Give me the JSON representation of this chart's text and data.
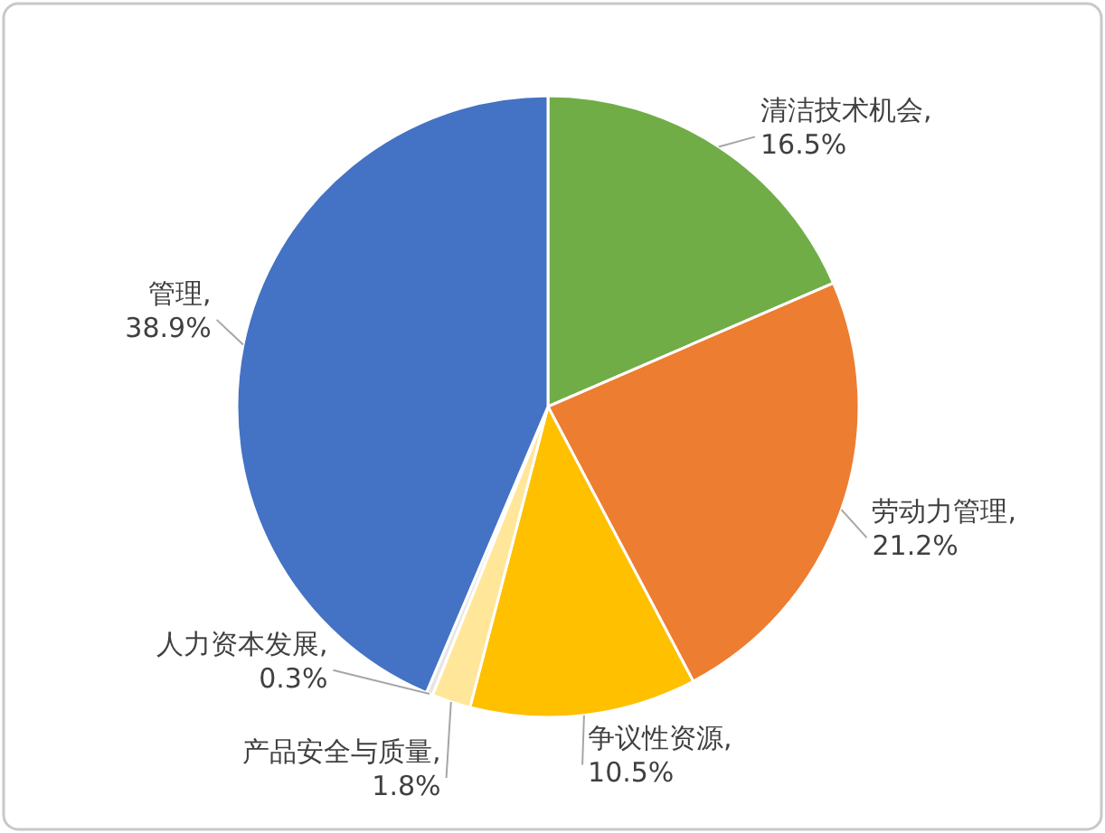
{
  "chart_data": {
    "type": "pie",
    "categories": [
      "清洁技术机会",
      "劳动力管理",
      "争议性资源",
      "产品安全与质量",
      "人力资本发展",
      "管理"
    ],
    "values": [
      16.5,
      21.2,
      10.5,
      1.8,
      0.3,
      38.9
    ],
    "value_labels": [
      ", 16.5%",
      ", 21.2%",
      ", 10.5%",
      ", 1.8%",
      ", 0.3%",
      ", 38.9%"
    ],
    "colors": [
      "#70ad47",
      "#ed7d31",
      "#ffc000",
      "#ffe699",
      "#e7e6e6",
      "#4472c4"
    ]
  }
}
